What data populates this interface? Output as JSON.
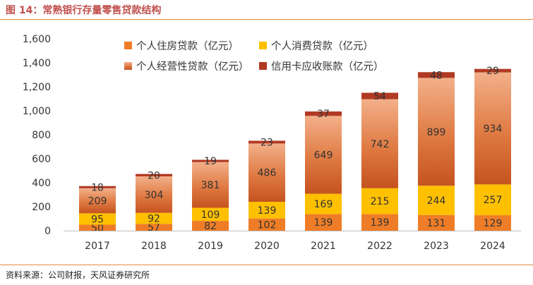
{
  "figure": {
    "title": "图 14：常熟银行存量零售贷款结构",
    "source": "资料来源：公司财报，天风证券研究所"
  },
  "colors": {
    "accent_rule": "#e58a3d",
    "title_text": "#c0504d"
  },
  "chart_data": {
    "type": "bar",
    "stacked": true,
    "categories": [
      "2017",
      "2018",
      "2019",
      "2020",
      "2021",
      "2022",
      "2023",
      "2024"
    ],
    "ylim": [
      0,
      1600
    ],
    "yticks": [
      "0",
      "200",
      "400",
      "600",
      "800",
      "1,000",
      "1,200",
      "1,400",
      "1,600"
    ],
    "grid": false,
    "legend_position": "top",
    "series": [
      {
        "name": "个人住房贷款（亿元）",
        "color": "#ef7d27",
        "gradient": false,
        "values": [
          50,
          57,
          82,
          102,
          139,
          139,
          131,
          129
        ]
      },
      {
        "name": "个人消费贷款（亿元）",
        "color": "#ffc000",
        "gradient": false,
        "values": [
          95,
          92,
          109,
          139,
          169,
          215,
          244,
          257
        ]
      },
      {
        "name": "个人经营性贷款（亿元）",
        "color": "#d9682f",
        "gradient": true,
        "values": [
          209,
          304,
          381,
          486,
          649,
          742,
          899,
          934
        ]
      },
      {
        "name": "信用卡应收账款（亿元）",
        "color": "#b13a22",
        "gradient": false,
        "values": [
          18,
          20,
          19,
          23,
          37,
          54,
          48,
          29
        ]
      }
    ]
  }
}
